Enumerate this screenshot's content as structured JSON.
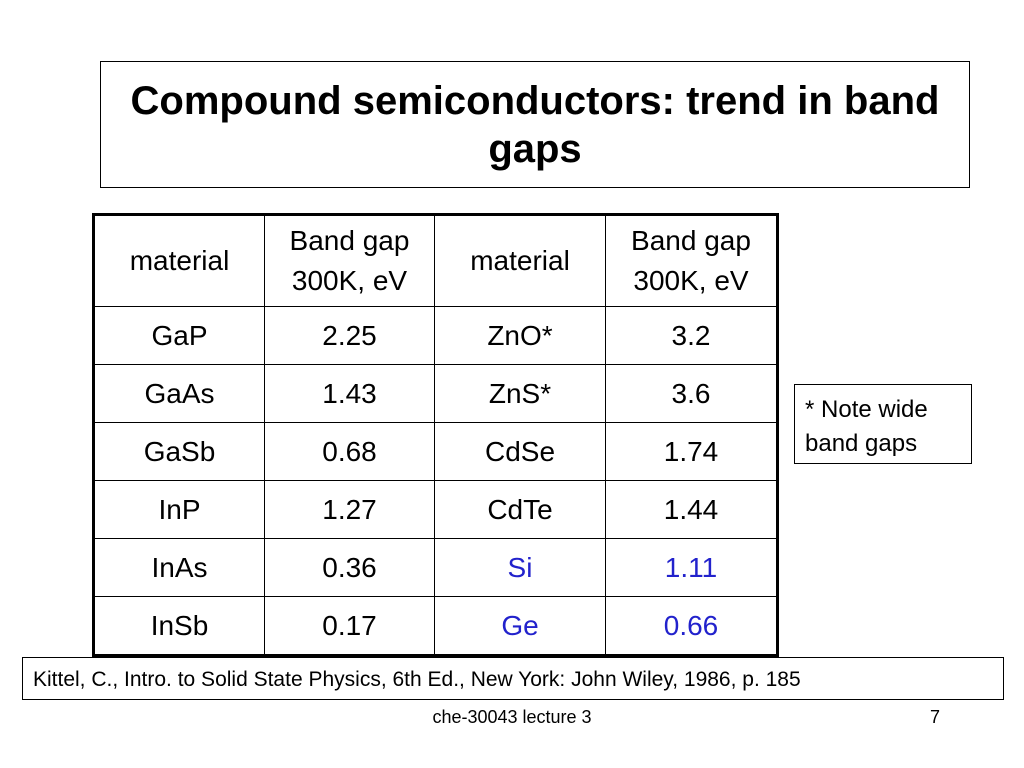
{
  "slide": {
    "title": "Compound semiconductors: trend in band gaps",
    "note": [
      "* Note wide",
      "band gaps"
    ],
    "reference": "Kittel, C., Intro. to Solid State Physics, 6th Ed., New York: John Wiley, 1986, p. 185",
    "footer": "che-30043 lecture 3",
    "page_number": "7",
    "highlight_color": "#2222cc"
  },
  "table": {
    "headers": [
      [
        "material"
      ],
      [
        "Band gap",
        "300K, eV"
      ],
      [
        "material"
      ],
      [
        "Band gap",
        "300K, eV"
      ]
    ],
    "rows": [
      [
        "GaP",
        "2.25",
        "ZnO*",
        "3.2"
      ],
      [
        "GaAs",
        "1.43",
        "ZnS*",
        "3.6"
      ],
      [
        "GaSb",
        "0.68",
        "CdSe",
        "1.74"
      ],
      [
        "InP",
        "1.27",
        "CdTe",
        "1.44"
      ],
      [
        "InAs",
        "0.36",
        "Si",
        "1.11"
      ],
      [
        "InSb",
        "0.17",
        "Ge",
        "0.66"
      ]
    ]
  }
}
